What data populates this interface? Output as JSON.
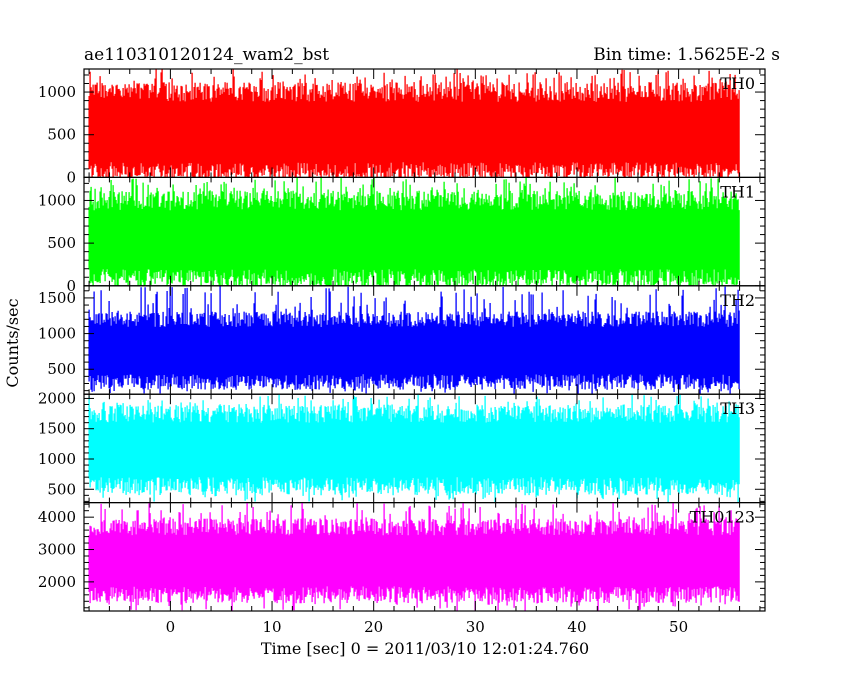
{
  "header": {
    "title": "ae110310120124_wam2_bst",
    "bin_time": "Bin time: 1.5625E-2 s"
  },
  "chart_data": {
    "type": "line",
    "title": "ae110310120124_wam2_bst",
    "subtitle": "Bin time: 1.5625E-2 s",
    "xlabel": "Time [sec] 0 = 2011/03/10 12:01:24.760",
    "ylabel": "Counts/sec",
    "xlim": [
      -8.5,
      58.5
    ],
    "x_ticks": [
      0,
      10,
      20,
      30,
      40,
      50
    ],
    "data_x_range": [
      -8,
      56
    ],
    "grid": false,
    "legend": "none",
    "panels": [
      {
        "name": "TH0",
        "color": "#ff0000",
        "ylim": [
          0,
          1270
        ],
        "y_ticks": [
          0,
          500,
          1000
        ],
        "band": [
          60,
          1000
        ],
        "spike_min": 0,
        "spike_max": 1270
      },
      {
        "name": "TH1",
        "color": "#00ff00",
        "ylim": [
          0,
          1270
        ],
        "y_ticks": [
          0,
          500,
          1000
        ],
        "band": [
          80,
          1000
        ],
        "spike_min": 0,
        "spike_max": 1270
      },
      {
        "name": "TH2",
        "color": "#0000ff",
        "ylim": [
          150,
          1670
        ],
        "y_ticks": [
          500,
          1000,
          1500
        ],
        "band": [
          320,
          1200
        ],
        "spike_min": 150,
        "spike_max": 1670
      },
      {
        "name": "TH3",
        "color": "#00ffff",
        "ylim": [
          280,
          2070
        ],
        "y_ticks": [
          500,
          1000,
          1500,
          2000
        ],
        "band": [
          550,
          1750
        ],
        "spike_min": 280,
        "spike_max": 2070
      },
      {
        "name": "TH0123",
        "color": "#ff00ff",
        "ylim": [
          1100,
          4450
        ],
        "y_ticks": [
          2000,
          3000,
          4000
        ],
        "band": [
          1600,
          3700
        ],
        "spike_min": 1100,
        "spike_max": 4450
      }
    ]
  }
}
